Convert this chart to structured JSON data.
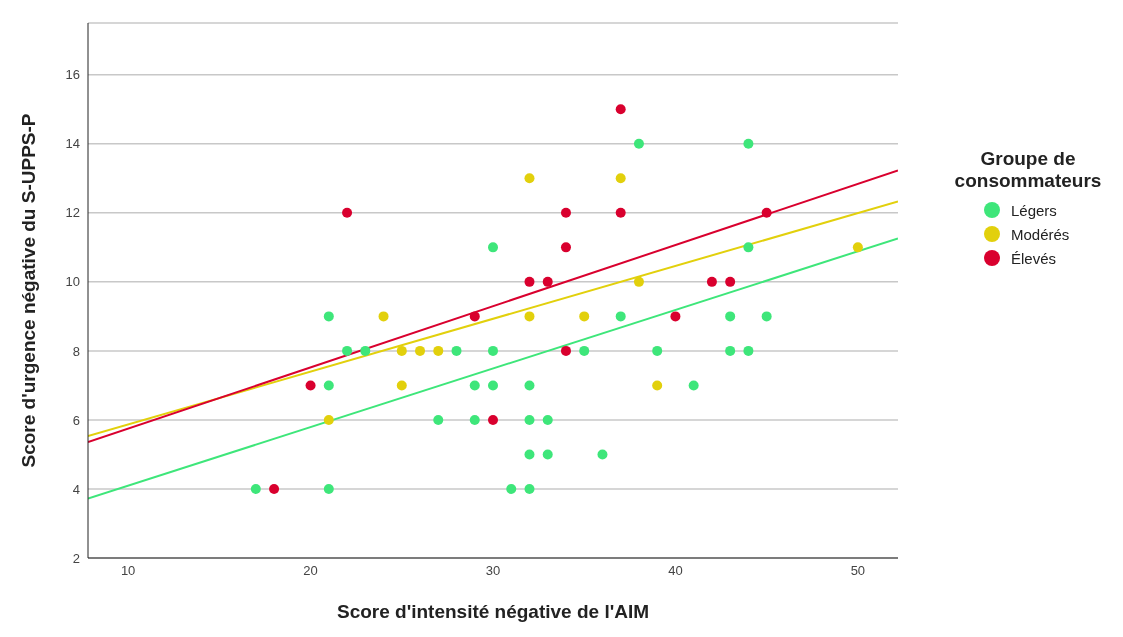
{
  "chart_data": {
    "type": "scatter",
    "xlabel": "Score d'intensité négative de l'AIM",
    "ylabel": "Score d'urgence négative du S-UPPS-P",
    "legend_title": "Groupe de consommateurs",
    "xlim": [
      7.8,
      52.2
    ],
    "ylim": [
      2,
      17.5
    ],
    "xticks": [
      10,
      20,
      30,
      40,
      50
    ],
    "yticks": [
      2,
      4,
      6,
      8,
      10,
      12,
      14,
      16
    ],
    "grid": "y",
    "legend": "right",
    "marker": "circle",
    "series": [
      {
        "name": "Légers",
        "color": "#3ee67a",
        "x": [
          17,
          21,
          21,
          21,
          22,
          23,
          27,
          28,
          29,
          29,
          30,
          30,
          30,
          31,
          32,
          32,
          32,
          32,
          33,
          33,
          35,
          36,
          37,
          38,
          39,
          41,
          43,
          43,
          44,
          44,
          44,
          45
        ],
        "values": [
          4,
          4,
          7,
          9,
          8,
          8,
          6,
          8,
          7,
          6,
          11,
          8,
          7,
          4,
          4,
          5,
          6,
          7,
          6,
          5,
          8,
          5,
          9,
          14,
          8,
          7,
          9,
          8,
          14,
          11,
          8,
          9
        ]
      },
      {
        "name": "Modérés",
        "color": "#e2d00c",
        "x": [
          21,
          24,
          25,
          25,
          26,
          27,
          32,
          32,
          35,
          37,
          38,
          39,
          50
        ],
        "values": [
          6,
          9,
          8,
          7,
          8,
          8,
          13,
          9,
          9,
          13,
          10,
          7,
          11
        ]
      },
      {
        "name": "Élevés",
        "color": "#d9002e",
        "x": [
          18,
          20,
          22,
          29,
          30,
          32,
          33,
          34,
          34,
          34,
          37,
          37,
          40,
          42,
          43,
          45
        ],
        "values": [
          4,
          7,
          12,
          9,
          6,
          10,
          10,
          12,
          11,
          8,
          15,
          12,
          9,
          10,
          10,
          12
        ]
      },
      {
        "type": "line",
        "marker": "none",
        "color": "#3ee67a",
        "x": [
          7.8,
          52.2
        ],
        "values": [
          3.72,
          11.26
        ]
      },
      {
        "type": "line",
        "marker": "none",
        "color": "#e2d00c",
        "x": [
          7.8,
          52.2
        ],
        "values": [
          5.53,
          12.33
        ]
      },
      {
        "type": "line",
        "marker": "none",
        "color": "#d9002e",
        "x": [
          7.8,
          52.2
        ],
        "values": [
          5.36,
          13.23
        ]
      }
    ]
  }
}
